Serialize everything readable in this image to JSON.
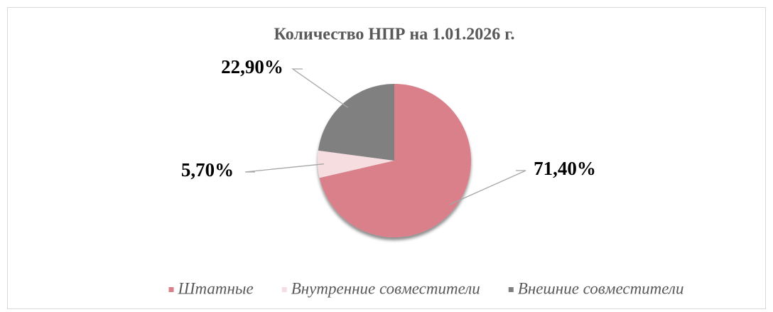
{
  "chart_data": {
    "type": "pie",
    "title": "Количество НПР на 1.01.2026 г.",
    "categories": [
      "Штатные",
      "Внутренние совместители",
      "Внешние совместители"
    ],
    "values": [
      71.4,
      5.7,
      22.9
    ],
    "value_labels": [
      "71,40%",
      "5,70%",
      "22,90%"
    ],
    "colors": [
      "#d9808a",
      "#f5dde0",
      "#808080"
    ],
    "legend": "bottom"
  }
}
